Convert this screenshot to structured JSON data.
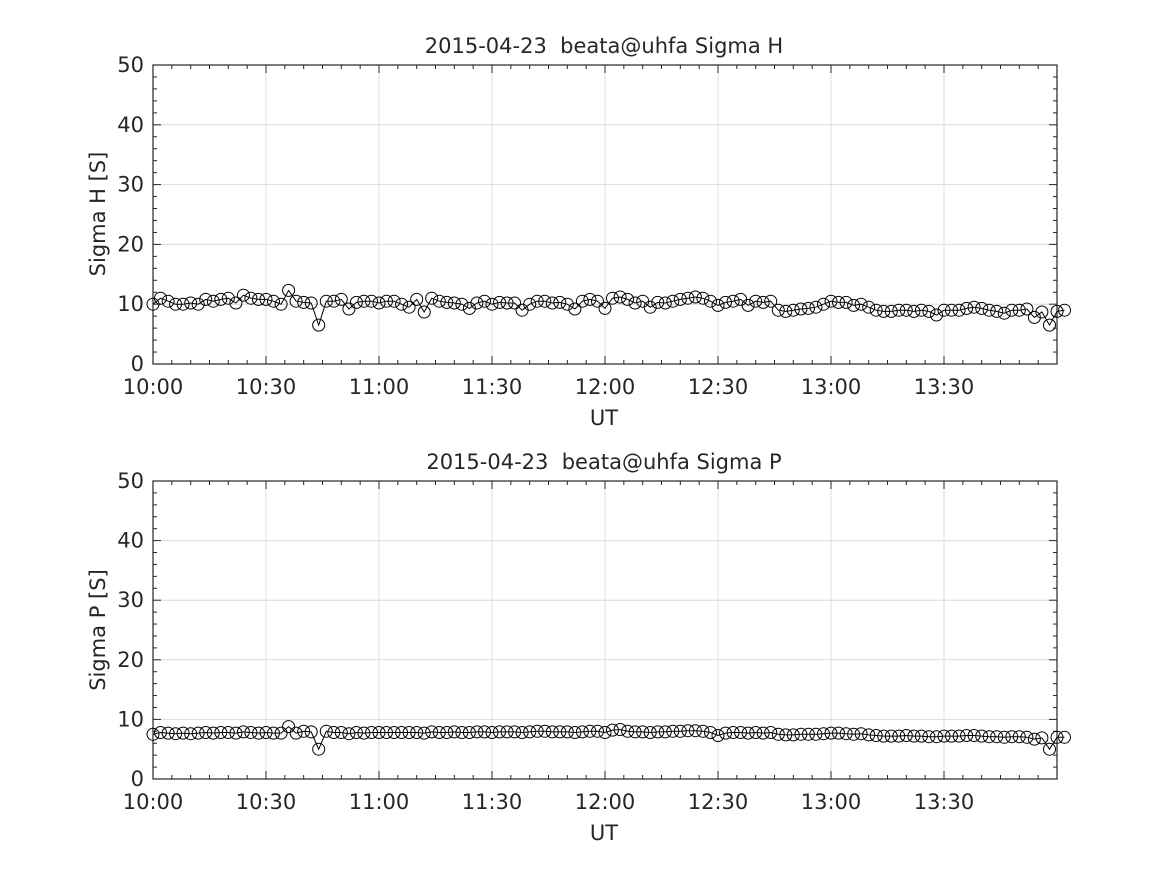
{
  "chart_data": [
    {
      "type": "line",
      "title": "2015-04-23  beata@uhfa Sigma H",
      "xlabel": "UT",
      "ylabel": "Sigma H [S]",
      "ylim": [
        0,
        50
      ],
      "yticks": [
        "0",
        "10",
        "20",
        "30",
        "40",
        "50"
      ],
      "xlim_minutes": [
        0,
        240
      ],
      "xticks": [
        {
          "minutes": 0,
          "label": "10:00"
        },
        {
          "minutes": 30,
          "label": "10:30"
        },
        {
          "minutes": 60,
          "label": "11:00"
        },
        {
          "minutes": 90,
          "label": "11:30"
        },
        {
          "minutes": 120,
          "label": "12:00"
        },
        {
          "minutes": 150,
          "label": "12:30"
        },
        {
          "minutes": 180,
          "label": "13:00"
        },
        {
          "minutes": 210,
          "label": "13:30"
        }
      ],
      "grid": true,
      "marker": "open-circle",
      "series": [
        {
          "x_start_minutes": 0,
          "x_step_minutes": 2,
          "values": [
            10.0,
            11.0,
            10.5,
            10.0,
            10.0,
            10.2,
            10.0,
            10.8,
            10.5,
            10.8,
            11.0,
            10.2,
            11.5,
            11.0,
            10.8,
            10.8,
            10.5,
            10.0,
            12.3,
            10.5,
            10.3,
            10.2,
            6.5,
            10.5,
            10.5,
            10.8,
            9.2,
            10.3,
            10.5,
            10.5,
            10.2,
            10.5,
            10.5,
            10.0,
            9.5,
            10.8,
            8.7,
            11.0,
            10.5,
            10.3,
            10.2,
            10.0,
            9.3,
            10.2,
            10.5,
            10.0,
            10.3,
            10.2,
            10.2,
            9.0,
            10.0,
            10.5,
            10.5,
            10.2,
            10.3,
            10.0,
            9.2,
            10.5,
            10.8,
            10.5,
            9.3,
            11.0,
            11.2,
            10.8,
            10.2,
            10.5,
            9.5,
            10.3,
            10.2,
            10.5,
            10.8,
            11.0,
            11.2,
            11.0,
            10.5,
            9.8,
            10.3,
            10.5,
            10.8,
            9.8,
            10.5,
            10.3,
            10.5,
            9.0,
            8.8,
            9.0,
            9.2,
            9.3,
            9.5,
            10.0,
            10.5,
            10.3,
            10.3,
            9.8,
            10.0,
            9.5,
            9.0,
            8.8,
            8.8,
            9.0,
            9.0,
            8.8,
            9.0,
            8.8,
            8.2,
            9.0,
            9.0,
            9.0,
            9.3,
            9.5,
            9.3,
            9.0,
            8.8,
            8.5,
            9.0,
            9.0,
            9.2,
            7.8,
            8.7,
            6.5,
            8.8,
            9.0
          ]
        }
      ]
    },
    {
      "type": "line",
      "title": "2015-04-23  beata@uhfa Sigma P",
      "xlabel": "UT",
      "ylabel": "Sigma P [S]",
      "ylim": [
        0,
        50
      ],
      "yticks": [
        "0",
        "10",
        "20",
        "30",
        "40",
        "50"
      ],
      "xlim_minutes": [
        0,
        240
      ],
      "xticks": [
        {
          "minutes": 0,
          "label": "10:00"
        },
        {
          "minutes": 30,
          "label": "10:30"
        },
        {
          "minutes": 60,
          "label": "11:00"
        },
        {
          "minutes": 90,
          "label": "11:30"
        },
        {
          "minutes": 120,
          "label": "12:00"
        },
        {
          "minutes": 150,
          "label": "12:30"
        },
        {
          "minutes": 180,
          "label": "13:00"
        },
        {
          "minutes": 210,
          "label": "13:30"
        }
      ],
      "grid": true,
      "marker": "open-circle",
      "series": [
        {
          "x_start_minutes": 0,
          "x_step_minutes": 2,
          "values": [
            7.5,
            7.8,
            7.7,
            7.6,
            7.7,
            7.6,
            7.7,
            7.8,
            7.7,
            7.8,
            7.8,
            7.7,
            7.9,
            7.8,
            7.7,
            7.8,
            7.7,
            7.7,
            8.8,
            7.7,
            8.0,
            7.9,
            5.0,
            8.0,
            7.8,
            7.8,
            7.6,
            7.8,
            7.7,
            7.8,
            7.8,
            7.8,
            7.8,
            7.8,
            7.8,
            7.8,
            7.7,
            7.9,
            7.8,
            7.8,
            7.9,
            7.8,
            7.8,
            7.9,
            7.9,
            7.8,
            7.9,
            7.9,
            7.9,
            7.8,
            7.9,
            8.0,
            8.0,
            7.9,
            7.9,
            7.9,
            7.8,
            7.9,
            8.0,
            8.0,
            7.8,
            8.2,
            8.3,
            8.0,
            7.9,
            7.9,
            7.8,
            7.9,
            7.9,
            8.0,
            8.0,
            8.1,
            8.1,
            8.0,
            7.8,
            7.3,
            7.7,
            7.8,
            7.8,
            7.7,
            7.8,
            7.7,
            7.8,
            7.5,
            7.4,
            7.4,
            7.5,
            7.5,
            7.5,
            7.6,
            7.7,
            7.7,
            7.6,
            7.5,
            7.6,
            7.4,
            7.3,
            7.2,
            7.2,
            7.2,
            7.3,
            7.2,
            7.2,
            7.1,
            7.1,
            7.2,
            7.2,
            7.2,
            7.3,
            7.3,
            7.2,
            7.1,
            7.1,
            7.0,
            7.1,
            7.1,
            7.0,
            6.7,
            6.9,
            5.0,
            7.0,
            7.0
          ]
        }
      ]
    }
  ]
}
